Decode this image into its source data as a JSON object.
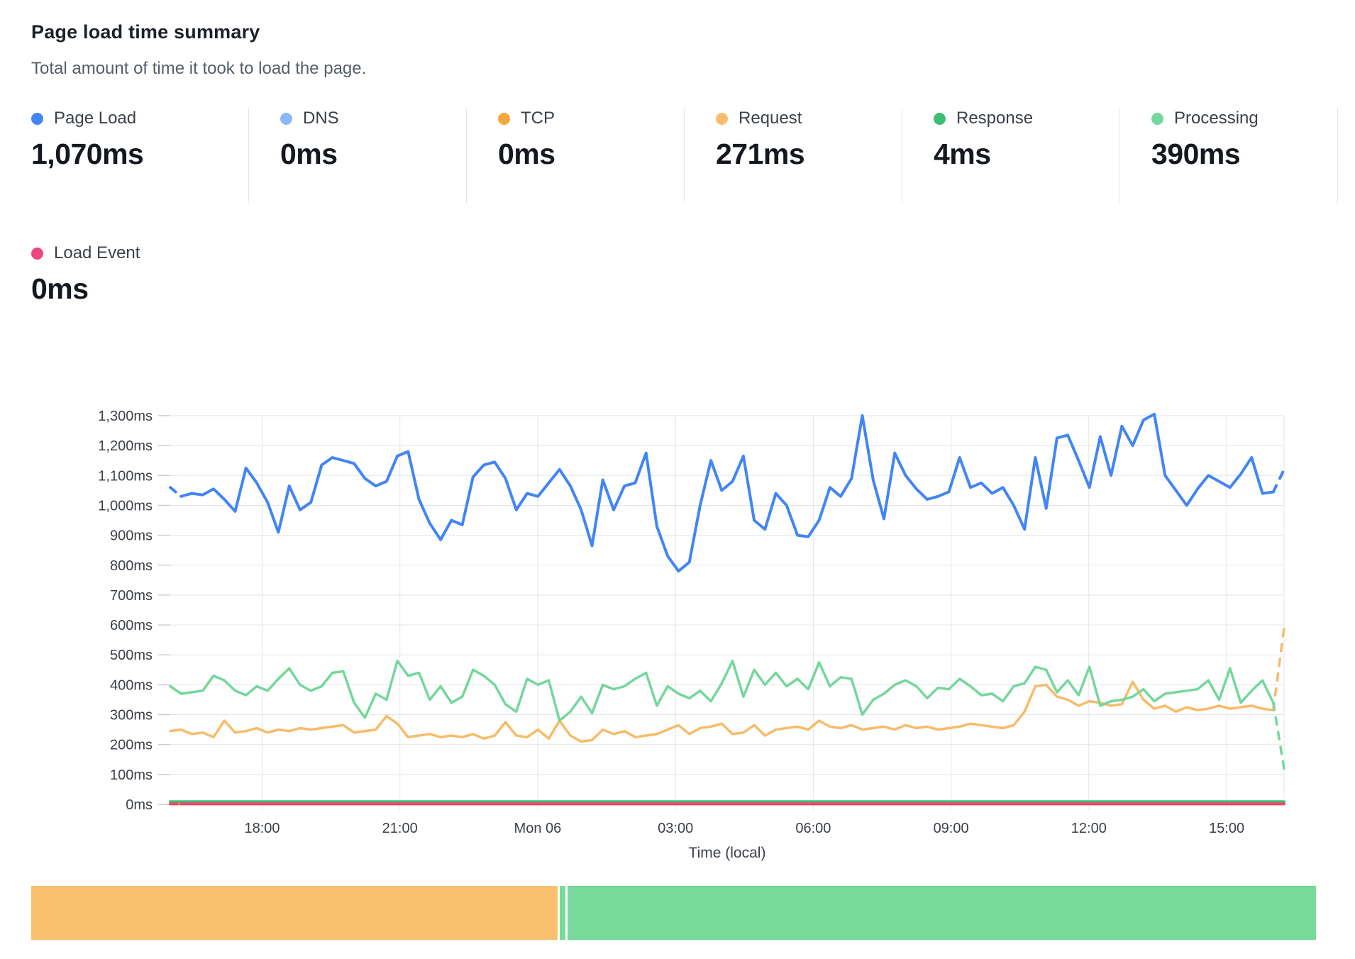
{
  "header": {
    "title": "Page load time summary",
    "subtitle": "Total amount of time it took to load the page."
  },
  "metrics_row1": [
    {
      "label": "Page Load",
      "value": "1,070ms",
      "color": "#4285F4"
    },
    {
      "label": "DNS",
      "value": "0ms",
      "color": "#8AB8F8"
    },
    {
      "label": "TCP",
      "value": "0ms",
      "color": "#F5A83E"
    },
    {
      "label": "Request",
      "value": "271ms",
      "color": "#F7BE6F"
    },
    {
      "label": "Response",
      "value": "4ms",
      "color": "#3DBF72"
    },
    {
      "label": "Processing",
      "value": "390ms",
      "color": "#72D89E"
    }
  ],
  "metrics_row2": [
    {
      "label": "Load Event",
      "value": "0ms",
      "color": "#F0457D"
    }
  ],
  "chart_data": {
    "type": "line",
    "title": "Page load time summary",
    "xlabel": "Time (local)",
    "ylabel": "",
    "ylim": [
      0,
      1300
    ],
    "y_tick_step": 100,
    "y_tick_suffix": "ms",
    "grid": true,
    "legend_position": "none",
    "span_hours": 24.25,
    "x_ticks": [
      {
        "label": "18:00",
        "hours_from_start": 2
      },
      {
        "label": "21:00",
        "hours_from_start": 5
      },
      {
        "label": "Mon 06",
        "hours_from_start": 8
      },
      {
        "label": "03:00",
        "hours_from_start": 11
      },
      {
        "label": "06:00",
        "hours_from_start": 14
      },
      {
        "label": "09:00",
        "hours_from_start": 17
      },
      {
        "label": "12:00",
        "hours_from_start": 20
      },
      {
        "label": "15:00",
        "hours_from_start": 23
      }
    ],
    "series": [
      {
        "name": "DNS",
        "color": "#8AB8F8",
        "width": 3,
        "flat": 0
      },
      {
        "name": "TCP",
        "color": "#F5A83E",
        "width": 3,
        "flat": 0
      },
      {
        "name": "Request",
        "color": "#F7BB69",
        "width": 3.5,
        "dash_last": true,
        "values": [
          245,
          250,
          235,
          240,
          225,
          280,
          240,
          245,
          255,
          240,
          250,
          245,
          255,
          250,
          255,
          260,
          265,
          240,
          245,
          250,
          295,
          270,
          225,
          230,
          235,
          225,
          230,
          225,
          235,
          220,
          230,
          275,
          230,
          225,
          250,
          220,
          280,
          230,
          210,
          215,
          250,
          235,
          245,
          225,
          230,
          235,
          250,
          265,
          235,
          255,
          260,
          270,
          235,
          240,
          265,
          230,
          250,
          255,
          260,
          250,
          280,
          260,
          255,
          265,
          250,
          255,
          260,
          250,
          265,
          255,
          260,
          250,
          255,
          260,
          270,
          265,
          260,
          255,
          265,
          310,
          395,
          400,
          360,
          350,
          330,
          345,
          340,
          330,
          335,
          410,
          350,
          320,
          330,
          310,
          325,
          315,
          320,
          330,
          320,
          325,
          330,
          320,
          315,
          590
        ]
      },
      {
        "name": "Processing",
        "color": "#74D79B",
        "width": 3.5,
        "dash_last": true,
        "values": [
          395,
          370,
          375,
          380,
          430,
          415,
          380,
          365,
          395,
          380,
          420,
          455,
          400,
          380,
          395,
          440,
          445,
          340,
          290,
          370,
          350,
          480,
          430,
          440,
          350,
          395,
          340,
          360,
          450,
          430,
          400,
          335,
          310,
          420,
          400,
          415,
          280,
          310,
          360,
          305,
          400,
          385,
          395,
          420,
          440,
          330,
          395,
          370,
          355,
          380,
          345,
          405,
          480,
          360,
          450,
          400,
          440,
          395,
          420,
          385,
          475,
          395,
          425,
          420,
          300,
          350,
          370,
          400,
          415,
          395,
          355,
          390,
          385,
          420,
          395,
          365,
          370,
          345,
          395,
          405,
          460,
          450,
          375,
          415,
          365,
          460,
          330,
          345,
          350,
          360,
          385,
          345,
          370,
          375,
          380,
          385,
          415,
          350,
          455,
          340,
          380,
          415,
          340,
          120
        ]
      },
      {
        "name": "Page Load",
        "color": "#4285F4",
        "width": 4,
        "dash_first": true,
        "dash_last": true,
        "values": [
          1060,
          1030,
          1040,
          1035,
          1055,
          1020,
          980,
          1125,
          1075,
          1010,
          910,
          1065,
          985,
          1010,
          1135,
          1160,
          1150,
          1140,
          1090,
          1065,
          1080,
          1165,
          1180,
          1020,
          940,
          885,
          950,
          935,
          1095,
          1135,
          1145,
          1090,
          985,
          1040,
          1030,
          1075,
          1120,
          1065,
          985,
          865,
          1085,
          985,
          1065,
          1075,
          1175,
          930,
          830,
          780,
          810,
          1000,
          1150,
          1050,
          1080,
          1165,
          950,
          920,
          1040,
          1000,
          900,
          895,
          950,
          1060,
          1030,
          1090,
          1300,
          1085,
          955,
          1175,
          1100,
          1055,
          1020,
          1030,
          1045,
          1160,
          1060,
          1075,
          1040,
          1060,
          1000,
          920,
          1160,
          990,
          1225,
          1235,
          1150,
          1060,
          1230,
          1100,
          1265,
          1200,
          1285,
          1305,
          1100,
          1050,
          1000,
          1055,
          1100,
          1080,
          1060,
          1105,
          1160,
          1040,
          1045,
          1120
        ]
      },
      {
        "name": "Response",
        "color": "#3DBF72",
        "width": 4,
        "flat": 9
      },
      {
        "name": "Load Event",
        "color": "#EA4679",
        "width": 4,
        "dash_first": true,
        "flat": 2
      }
    ]
  },
  "range_bar": {
    "segments": [
      {
        "color": "#F8C06E",
        "percent": 40.95
      },
      {
        "color": "#77DA9B",
        "percent": 0.44
      },
      {
        "color": "#77DA9B",
        "percent": 58.2
      }
    ]
  }
}
